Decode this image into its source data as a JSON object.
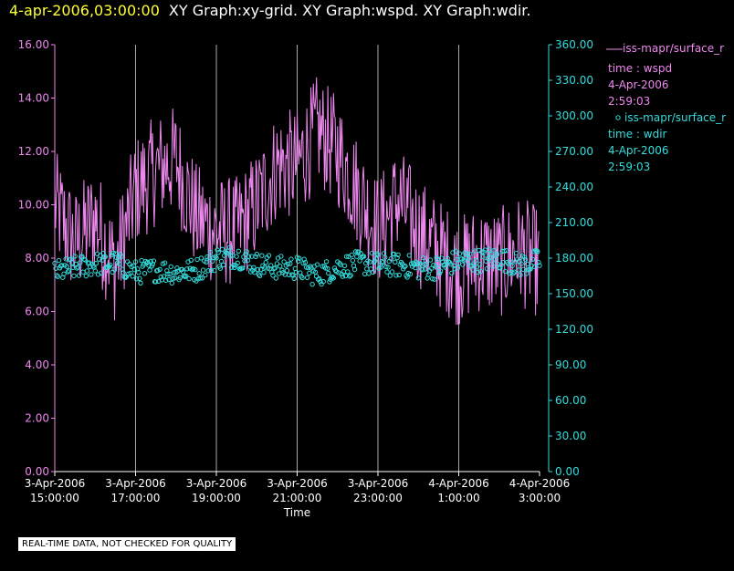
{
  "header": {
    "timestamp": "4-apr-2006,03:00:00",
    "title": "XY Graph:xy-grid.  XY Graph:wspd.  XY Graph:wdir."
  },
  "legend": {
    "items": [
      {
        "label": "iss-mapr/surface_r",
        "subtitle": "time : wspd",
        "date": "4-Apr-2006",
        "time": "2:59:03",
        "color": "#ee88ee",
        "marker": "line"
      },
      {
        "label": "iss-mapr/surface_r",
        "subtitle": "time : wdir",
        "date": "4-Apr-2006",
        "time": "2:59:03",
        "color": "#33dddd",
        "marker": "circle"
      }
    ]
  },
  "footer": {
    "text": "REAL-TIME DATA, NOT CHECKED FOR QUALITY"
  },
  "chart_data": {
    "type": "line",
    "xlabel": "Time",
    "x_ticks": [
      {
        "date": "3-Apr-2006",
        "time": "15:00:00"
      },
      {
        "date": "3-Apr-2006",
        "time": "17:00:00"
      },
      {
        "date": "3-Apr-2006",
        "time": "19:00:00"
      },
      {
        "date": "3-Apr-2006",
        "time": "21:00:00"
      },
      {
        "date": "3-Apr-2006",
        "time": "23:00:00"
      },
      {
        "date": "4-Apr-2006",
        "time": "1:00:00"
      },
      {
        "date": "4-Apr-2006",
        "time": "3:00:00"
      }
    ],
    "xlim": [
      "2006-04-03 15:00",
      "2006-04-04 03:00"
    ],
    "y_left": {
      "ylim": [
        0,
        16
      ],
      "ticks": [
        "0.00",
        "2.00",
        "4.00",
        "6.00",
        "8.00",
        "10.00",
        "12.00",
        "14.00",
        "16.00"
      ],
      "color": "#ee88ee"
    },
    "y_right": {
      "ylim": [
        0,
        360
      ],
      "ticks": [
        "0.00",
        "30.00",
        "60.00",
        "90.00",
        "120.00",
        "150.00",
        "180.00",
        "210.00",
        "240.00",
        "270.00",
        "300.00",
        "330.00",
        "360.00"
      ],
      "color": "#33dddd"
    },
    "grid": "vertical",
    "series": [
      {
        "name": "time : wspd",
        "axis": "left",
        "style": "line",
        "color": "#ee88ee",
        "x": [
          "15:00",
          "15:30",
          "16:00",
          "16:30",
          "17:00",
          "17:30",
          "18:00",
          "18:30",
          "19:00",
          "19:30",
          "20:00",
          "20:30",
          "21:00",
          "21:30",
          "22:00",
          "22:30",
          "23:00",
          "23:30",
          "00:00",
          "00:30",
          "01:00",
          "01:30",
          "02:00",
          "02:30",
          "03:00"
        ],
        "values": [
          10.0,
          8.5,
          9.5,
          7.6,
          10.5,
          11.3,
          11.7,
          9.5,
          9.0,
          9.0,
          10.0,
          11.5,
          11.5,
          12.8,
          12.0,
          10.5,
          9.0,
          10.2,
          9.0,
          8.2,
          7.5,
          8.0,
          7.8,
          8.3,
          7.8
        ]
      },
      {
        "name": "time : wdir",
        "axis": "right",
        "style": "scatter",
        "color": "#33dddd",
        "x": [
          "15:00",
          "15:30",
          "16:00",
          "16:30",
          "17:00",
          "17:30",
          "18:00",
          "18:30",
          "19:00",
          "19:30",
          "20:00",
          "20:30",
          "21:00",
          "21:30",
          "22:00",
          "22:30",
          "23:00",
          "23:30",
          "00:00",
          "00:30",
          "01:00",
          "01:30",
          "02:00",
          "02:30",
          "03:00"
        ],
        "values": [
          168,
          172,
          175,
          176,
          168,
          170,
          168,
          170,
          180,
          182,
          175,
          172,
          172,
          166,
          172,
          176,
          175,
          174,
          172,
          172,
          178,
          178,
          180,
          174,
          178
        ]
      }
    ]
  }
}
